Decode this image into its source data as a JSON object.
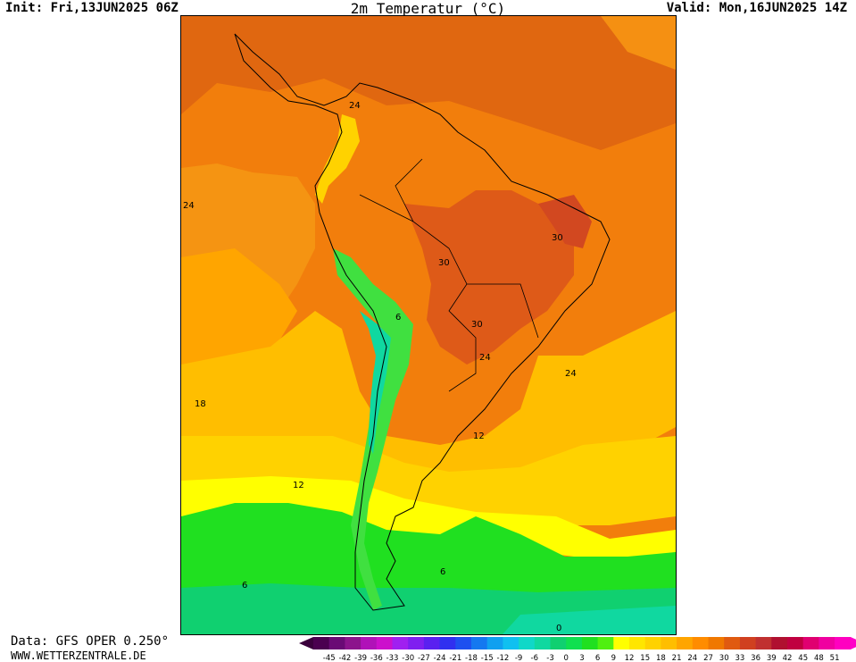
{
  "header": {
    "init_label": "Init: Fri,13JUN2025 06Z",
    "title": "2m Temperatur (°C)",
    "valid_label": "Valid: Mon,16JUN2025 14Z"
  },
  "map": {
    "contour_labels": [
      "24",
      "24",
      "30",
      "30",
      "30",
      "6",
      "24",
      "24",
      "18",
      "12",
      "12",
      "6",
      "6",
      "0"
    ]
  },
  "footer": {
    "source": "Data: GFS OPER 0.250°",
    "website": "WWW.WETTERZENTRALE.DE"
  },
  "legend": {
    "ticks": [
      "-45",
      "-42",
      "-39",
      "-36",
      "-33",
      "-30",
      "-27",
      "-24",
      "-21",
      "-18",
      "-15",
      "-12",
      "-9",
      "-6",
      "-3",
      "0",
      "3",
      "6",
      "9",
      "12",
      "15",
      "18",
      "21",
      "24",
      "27",
      "30",
      "33",
      "36",
      "39",
      "42",
      "45",
      "48",
      "51"
    ],
    "colors": [
      "#4b0050",
      "#6a0a75",
      "#8c148c",
      "#b012b8",
      "#cc10cc",
      "#a020f0",
      "#7f1ff0",
      "#5a20f0",
      "#3030f0",
      "#1e50f0",
      "#1478f0",
      "#10a0f0",
      "#10c0f0",
      "#10d8c8",
      "#10d8a0",
      "#10d070",
      "#10e050",
      "#20e020",
      "#50f010",
      "#ffff00",
      "#ffe600",
      "#ffd200",
      "#ffbe00",
      "#ffa500",
      "#ff8c00",
      "#f07800",
      "#e05a10",
      "#d04020",
      "#c03030",
      "#b01030",
      "#c00040",
      "#e00070",
      "#f000a0",
      "#ff00c0"
    ],
    "low_arrow_color": "#3a003c",
    "high_arrow_color": "#ff00c8"
  }
}
